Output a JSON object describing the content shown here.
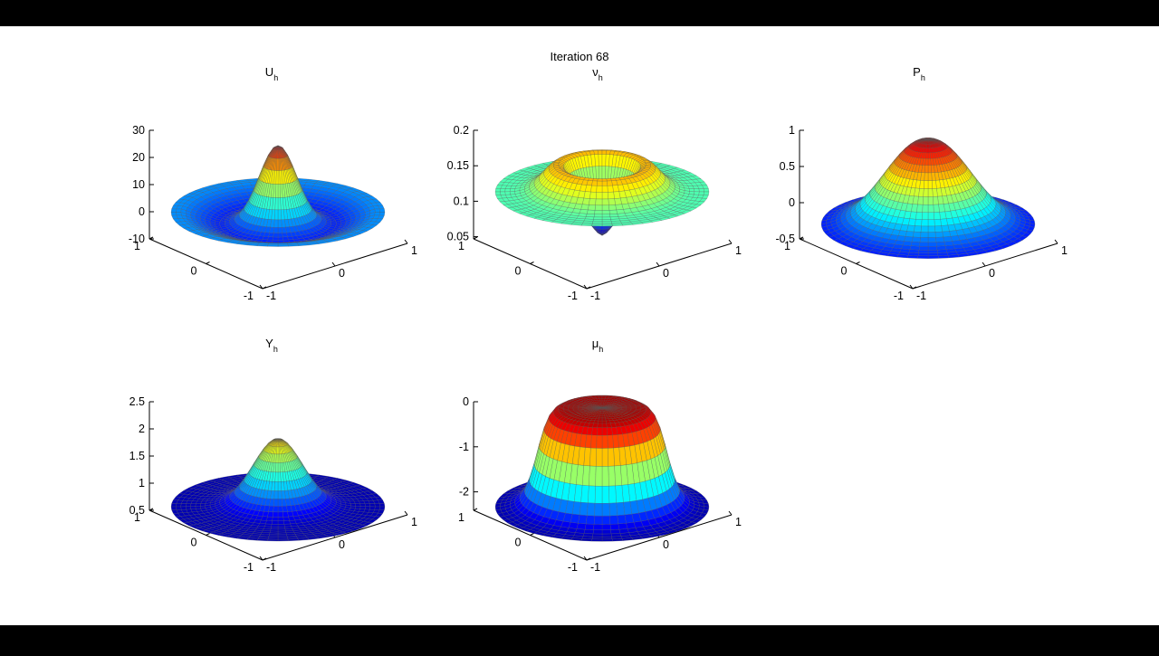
{
  "figure": {
    "title": "Iteration 68"
  },
  "theme": {
    "background": "#000000",
    "figure_bg": "#ffffff",
    "colormap": "jet",
    "mesh_edge": "#555555"
  },
  "chart_data": [
    {
      "type": "surface",
      "title_base": "U",
      "title_sub": "h",
      "shape": "bump-with-rim",
      "zlim": [
        -10,
        30
      ],
      "zticks": [
        "30",
        "20",
        "10",
        "0",
        "-10"
      ],
      "xticks": [
        "-1",
        "0",
        "1"
      ],
      "yticks": [
        "1",
        "0",
        "-1"
      ],
      "z_peak": 25,
      "z_rim": 0.5,
      "z_trough": -4
    },
    {
      "type": "surface",
      "title_base": "ν",
      "title_sub": "h",
      "shape": "ring",
      "zlim": [
        0.05,
        0.25
      ],
      "zticks": [
        "0.2",
        "0.15",
        "0.1",
        "0.05"
      ],
      "xticks": [
        "-1",
        "0",
        "1"
      ],
      "yticks": [
        "1",
        "0",
        "-1"
      ],
      "z_center": 0.06,
      "z_ring_max": 0.19,
      "z_rim": 0.14
    },
    {
      "type": "surface",
      "title_base": "P",
      "title_sub": "h",
      "shape": "dome",
      "zlim": [
        -0.5,
        1
      ],
      "zticks": [
        "1",
        "0.5",
        "0",
        "-0.5"
      ],
      "xticks": [
        "-1",
        "0",
        "1"
      ],
      "yticks": [
        "1",
        "0",
        "-1"
      ],
      "z_peak": 0.9,
      "z_rim": -0.3
    },
    {
      "type": "surface",
      "title_base": "Y",
      "title_sub": "h",
      "shape": "bump",
      "zlim": [
        0.5,
        2.5
      ],
      "zticks": [
        "2.5",
        "2",
        "1.5",
        "1",
        "0.5"
      ],
      "xticks": [
        "-1",
        "0",
        "1"
      ],
      "yticks": [
        "1",
        "0",
        "-1"
      ],
      "z_peak": 1.85,
      "z_rim": 0.6
    },
    {
      "type": "surface",
      "title_base": "μ",
      "title_sub": "h",
      "shape": "plateau",
      "zlim": [
        -2.5,
        0
      ],
      "zticks": [
        "0",
        "-1",
        "-2"
      ],
      "xticks": [
        "-1",
        "0",
        "1"
      ],
      "yticks": [
        "1",
        "0",
        "-1"
      ],
      "z_peak": -0.1,
      "z_rim": -2.4
    }
  ]
}
